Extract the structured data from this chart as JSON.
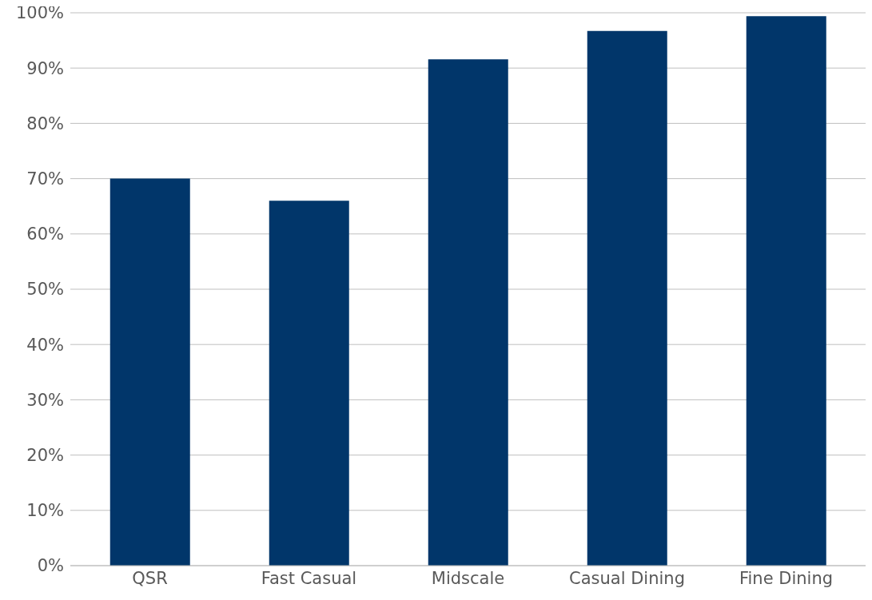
{
  "chart_data": {
    "type": "bar",
    "categories": [
      "QSR",
      "Fast Casual",
      "Midscale",
      "Casual Dining",
      "Fine Dining"
    ],
    "values": [
      70,
      66,
      91.6,
      96.7,
      99.4
    ],
    "color": "#01366a",
    "ylim": [
      0,
      100
    ],
    "yticks": [
      {
        "value": 0,
        "label": "0%"
      },
      {
        "value": 10,
        "label": "10%"
      },
      {
        "value": 20,
        "label": "20%"
      },
      {
        "value": 30,
        "label": "30%"
      },
      {
        "value": 40,
        "label": "40%"
      },
      {
        "value": 50,
        "label": "50%"
      },
      {
        "value": 60,
        "label": "60%"
      },
      {
        "value": 70,
        "label": "70%"
      },
      {
        "value": 80,
        "label": "80%"
      },
      {
        "value": 90,
        "label": "90%"
      },
      {
        "value": 100,
        "label": "100%"
      }
    ],
    "grid": "y",
    "legend": false
  }
}
